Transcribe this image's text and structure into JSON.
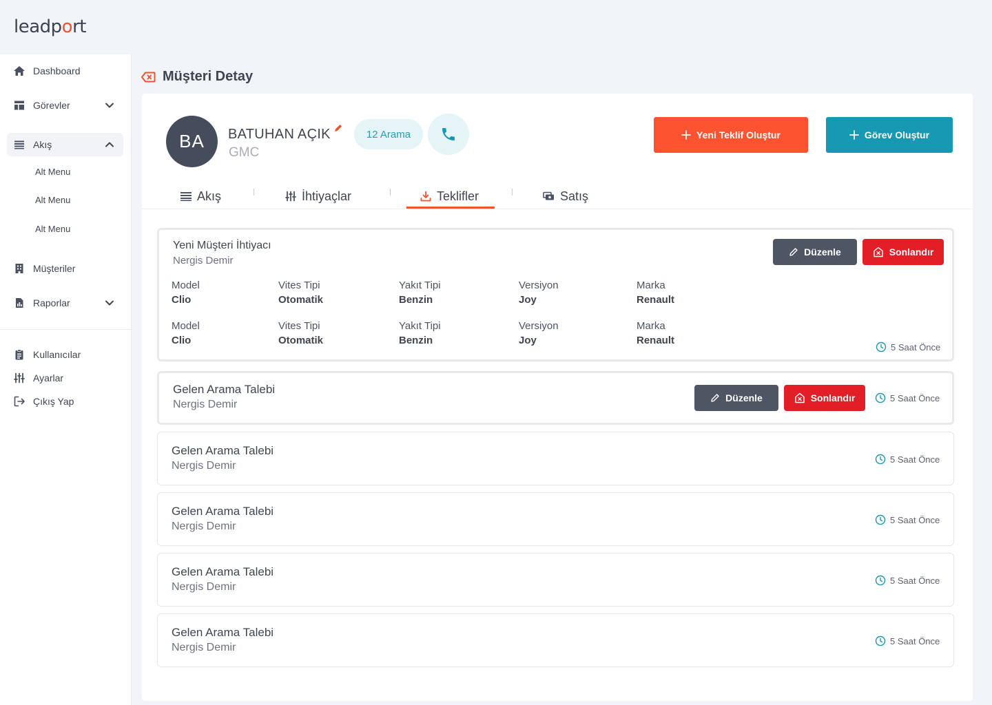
{
  "brand": {
    "pre": "leadp",
    "accent": "o",
    "post": "rt"
  },
  "sidebar": {
    "items": [
      {
        "label": "Dashboard"
      },
      {
        "label": "Görevler"
      },
      {
        "label": "Akış"
      },
      {
        "label": "Müşteriler"
      },
      {
        "label": "Raporlar"
      }
    ],
    "sub_items": [
      "Alt Menu",
      "Alt Menu",
      "Alt Menu"
    ],
    "bottom": [
      {
        "label": "Kullanıcılar"
      },
      {
        "label": "Ayarlar"
      },
      {
        "label": "Çıkış Yap"
      }
    ]
  },
  "page": {
    "title": "Müşteri Detay"
  },
  "customer": {
    "initials": "BA",
    "name": "BATUHAN AÇIK",
    "subtitle": "GMC",
    "calls": "12 Arama"
  },
  "actions": {
    "new_offer": "Yeni Teklif Oluştur",
    "new_task": "Görev Oluştur"
  },
  "tabs": [
    {
      "label": "Akış"
    },
    {
      "label": "İhtiyaçlar"
    },
    {
      "label": "Teklifler",
      "active": true
    },
    {
      "label": "Satış"
    }
  ],
  "buttons": {
    "edit": "Düzenle",
    "close": "Sonlandır"
  },
  "items": [
    {
      "title": "Yeni Müşteri İhtiyacı",
      "person": "Nergis Demir",
      "time": "5 Saat Önce",
      "specs": [
        [
          {
            "label": "Model",
            "value": "Clio"
          },
          {
            "label": "Vites Tipi",
            "value": "Otomatik"
          },
          {
            "label": "Yakıt Tipi",
            "value": "Benzin"
          },
          {
            "label": "Versiyon",
            "value": "Joy"
          },
          {
            "label": "Marka",
            "value": "Renault"
          }
        ],
        [
          {
            "label": "Model",
            "value": "Clio"
          },
          {
            "label": "Vites Tipi",
            "value": "Otomatik"
          },
          {
            "label": "Yakıt Tipi",
            "value": "Benzin"
          },
          {
            "label": "Versiyon",
            "value": "Joy"
          },
          {
            "label": "Marka",
            "value": "Renault"
          }
        ]
      ]
    },
    {
      "title": "Gelen Arama Talebi",
      "person": "Nergis Demir",
      "time": "5 Saat Önce"
    },
    {
      "title": "Gelen Arama Talebi",
      "person": "Nergis Demir",
      "time": "5 Saat Önce"
    },
    {
      "title": "Gelen Arama Talebi",
      "person": "Nergis Demir",
      "time": "5 Saat Önce"
    },
    {
      "title": "Gelen Arama Talebi",
      "person": "Nergis Demir",
      "time": "5 Saat Önce"
    },
    {
      "title": "Gelen Arama Talebi",
      "person": "Nergis Demir",
      "time": "5 Saat Önce"
    }
  ],
  "colors": {
    "accent": "#f5522c",
    "teal": "#1798b3",
    "danger": "#e21f26",
    "dark": "#4f5663"
  }
}
